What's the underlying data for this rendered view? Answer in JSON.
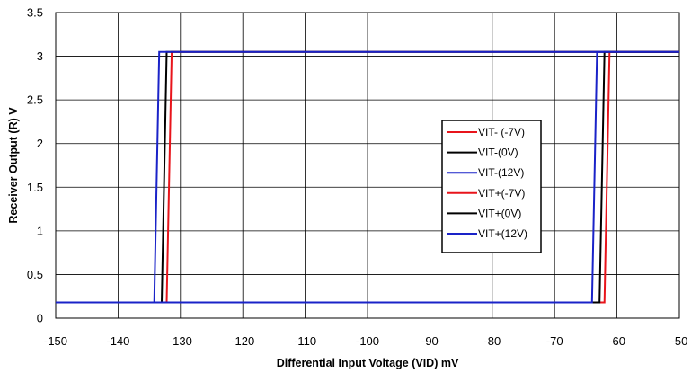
{
  "chart_data": {
    "type": "line",
    "title": "",
    "xlabel": "Differential Input Voltage (VID) mV",
    "ylabel": "Receiver Output (R) V",
    "xlim": [
      -150,
      -50
    ],
    "ylim": [
      0,
      3.5
    ],
    "x_ticks": [
      -150,
      -140,
      -130,
      -120,
      -110,
      -100,
      -90,
      -80,
      -70,
      -60,
      -50
    ],
    "y_ticks": [
      0,
      0.5,
      1,
      1.5,
      2,
      2.5,
      3,
      3.5
    ],
    "x_tick_labels": [
      "-150",
      "-140",
      "-130",
      "-120",
      "-110",
      "-100",
      "-90",
      "-80",
      "-70",
      "-60",
      "-50"
    ],
    "y_tick_labels": [
      "0",
      "0.5",
      "1",
      "1.5",
      "2",
      "2.5",
      "3",
      "3.5"
    ],
    "grid": true,
    "legend_position": "right",
    "series": [
      {
        "name": "VIT- (-7V)",
        "color": "#e8141b",
        "x": [
          -150,
          -132.2,
          -131.4,
          -50
        ],
        "y": [
          0.18,
          0.18,
          3.05,
          3.05
        ]
      },
      {
        "name": "VIT-(0V)",
        "color": "#000000",
        "x": [
          -150,
          -133.0,
          -132.2,
          -50
        ],
        "y": [
          0.18,
          0.18,
          3.05,
          3.05
        ]
      },
      {
        "name": "VIT-(12V)",
        "color": "#1a23c8",
        "x": [
          -150,
          -134.2,
          -133.4,
          -50
        ],
        "y": [
          0.18,
          0.18,
          3.05,
          3.05
        ]
      },
      {
        "name": "VIT+(-7V)",
        "color": "#e8141b",
        "x": [
          -150,
          -62.0,
          -61.2,
          -50
        ],
        "y": [
          0.18,
          0.18,
          3.05,
          3.05
        ]
      },
      {
        "name": "VIT+(0V)",
        "color": "#000000",
        "x": [
          -150,
          -62.8,
          -62.0,
          -50
        ],
        "y": [
          0.18,
          0.18,
          3.05,
          3.05
        ]
      },
      {
        "name": "VIT+(12V)",
        "color": "#1a23c8",
        "x": [
          -150,
          -64.0,
          -63.2,
          -50
        ],
        "y": [
          0.18,
          0.18,
          3.05,
          3.05
        ]
      }
    ]
  }
}
